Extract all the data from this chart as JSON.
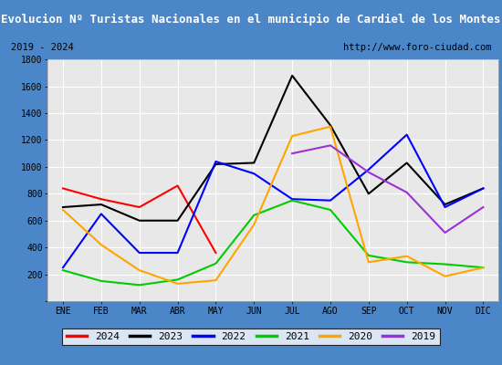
{
  "title": "Evolucion Nº Turistas Nacionales en el municipio de Cardiel de los Montes",
  "subtitle_left": "2019 - 2024",
  "subtitle_right": "http://www.foro-ciudad.com",
  "months": [
    "ENE",
    "FEB",
    "MAR",
    "ABR",
    "MAY",
    "JUN",
    "JUL",
    "AGO",
    "SEP",
    "OCT",
    "NOV",
    "DIC"
  ],
  "series": {
    "2024": {
      "color": "#ff0000",
      "values": [
        840,
        760,
        700,
        860,
        360,
        null,
        null,
        null,
        null,
        null,
        null,
        null
      ]
    },
    "2023": {
      "color": "#000000",
      "values": [
        700,
        720,
        600,
        600,
        1020,
        1030,
        1680,
        1310,
        800,
        1030,
        720,
        840
      ]
    },
    "2022": {
      "color": "#0000ff",
      "values": [
        250,
        650,
        360,
        360,
        1040,
        950,
        760,
        750,
        980,
        1240,
        700,
        840
      ]
    },
    "2021": {
      "color": "#00cc00",
      "values": [
        230,
        150,
        120,
        160,
        280,
        640,
        750,
        680,
        340,
        290,
        275,
        250
      ]
    },
    "2020": {
      "color": "#ffa500",
      "values": [
        680,
        420,
        230,
        130,
        155,
        570,
        1230,
        1300,
        290,
        335,
        185,
        250
      ]
    },
    "2019": {
      "color": "#9b30d9",
      "values": [
        null,
        null,
        null,
        null,
        null,
        null,
        1100,
        1160,
        960,
        810,
        510,
        700
      ]
    }
  },
  "ylim": [
    0,
    1800
  ],
  "yticks": [
    0,
    200,
    400,
    600,
    800,
    1000,
    1200,
    1400,
    1600,
    1800
  ],
  "title_bg_color": "#4a86c8",
  "title_text_color": "#ffffff",
  "plot_bg_color": "#e8e8e8",
  "outer_bg_color": "#4a86c8",
  "inner_bg_color": "#ffffff",
  "grid_color": "#ffffff",
  "linewidth": 1.5,
  "legend_order": [
    "2024",
    "2023",
    "2022",
    "2021",
    "2020",
    "2019"
  ]
}
